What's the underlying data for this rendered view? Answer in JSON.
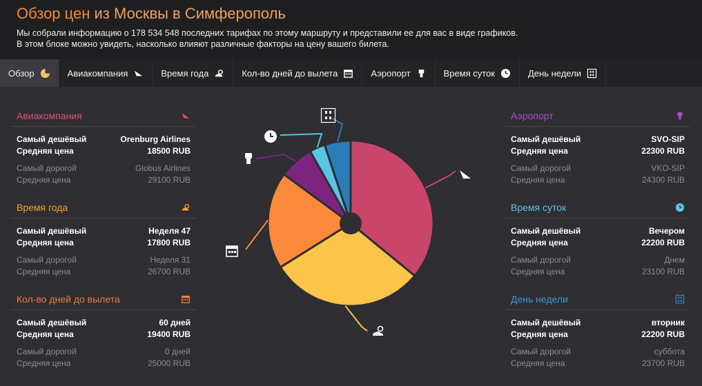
{
  "header": {
    "title_main": "Обзор цен",
    "title_rest": "из Москвы в Симферополь",
    "line1": "Мы собрали информацию о 178 534 548 последних тарифах по этому маршруту и представили ее для вас в виде графиков.",
    "line2": "В этом блоке можно увидеть, насколько влияют различные факторы на цену вашего билета."
  },
  "tabs": [
    {
      "label": "Обзор",
      "icon": "pie-icon"
    },
    {
      "label": "Авиакомпания",
      "icon": "plane-icon"
    },
    {
      "label": "Время года",
      "icon": "weather-icon"
    },
    {
      "label": "Кол-во дней до вылета",
      "icon": "calendar-icon"
    },
    {
      "label": "Аэропорт",
      "icon": "airport-icon"
    },
    {
      "label": "Время суток",
      "icon": "clock-icon"
    },
    {
      "label": "День недели",
      "icon": "week-icon"
    }
  ],
  "labels": {
    "cheapest": "Самый дешёвый",
    "avg": "Средняя цена",
    "expensive": "Самый дорогой"
  },
  "panels": {
    "airline": {
      "title": "Авиакомпания",
      "color": "#e0536f",
      "cheap_value": "Orenburg Airlines",
      "cheap_price": "18500 RUB",
      "exp_value": "Globus Airlines",
      "exp_price": "29100 RUB"
    },
    "season": {
      "title": "Время года",
      "color": "#f5a623",
      "cheap_value": "Неделя 47",
      "cheap_price": "17800 RUB",
      "exp_value": "Неделя 31",
      "exp_price": "26700 RUB"
    },
    "days": {
      "title": "Кол-во дней до вылета",
      "color": "#f27a3a",
      "cheap_value": "60 дней",
      "cheap_price": "19400 RUB",
      "exp_value": "0 дней",
      "exp_price": "25000 RUB"
    },
    "airport": {
      "title": "Аэропорт",
      "color": "#b04cc8",
      "cheap_value": "SVO-SIP",
      "cheap_price": "22300 RUB",
      "exp_value": "VKO-SIP",
      "exp_price": "24300 RUB"
    },
    "time": {
      "title": "Время суток",
      "color": "#5bc4e6",
      "cheap_value": "Вечером",
      "cheap_price": "22200 RUB",
      "exp_value": "Днем",
      "exp_price": "23100 RUB"
    },
    "weekday": {
      "title": "День недели",
      "color": "#3a9ad9",
      "cheap_value": "вторник",
      "cheap_price": "22200 RUB",
      "exp_value": "суббота",
      "exp_price": "23700 RUB"
    }
  },
  "chart_data": {
    "type": "pie",
    "title": "",
    "categories": [
      "Авиакомпания",
      "Время года",
      "Кол-во дней до вылета",
      "Аэропорт",
      "Время суток",
      "День недели"
    ],
    "values": [
      10.6,
      8.9,
      5.6,
      2.0,
      0.9,
      1.5
    ],
    "colors": [
      "#c9466a",
      "#fdc44a",
      "#fb8a3c",
      "#7d2380",
      "#5bc4e6",
      "#2b7cb8"
    ]
  }
}
